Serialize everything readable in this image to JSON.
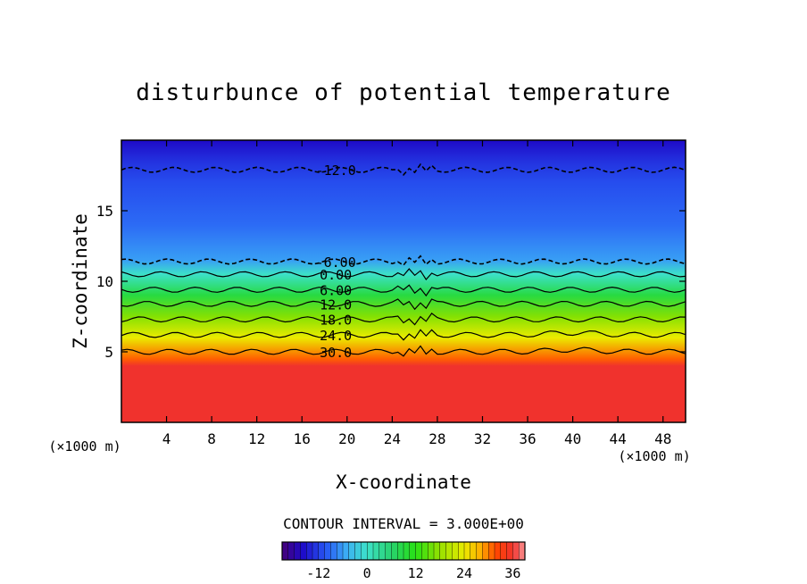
{
  "chart_data": {
    "type": "contour",
    "title": "disturbunce of potential temperature",
    "xlabel": "X-coordinate",
    "ylabel": "Z-coordinate",
    "x_unit": "(×1000 m)",
    "z_unit": "(×1000 m)",
    "xlim": [
      0,
      50
    ],
    "ylim": [
      0,
      20
    ],
    "x_ticks": [
      4,
      8,
      12,
      16,
      20,
      24,
      28,
      32,
      36,
      40,
      44,
      48
    ],
    "y_ticks": [
      5,
      10,
      15
    ],
    "contour_interval_text": "CONTOUR INTERVAL = 3.000E+00",
    "contour_interval": 3.0,
    "value_range": [
      -21,
      39
    ],
    "colorbar_ticks": [
      "-12",
      "0",
      "12",
      "24",
      "36"
    ],
    "contour_labels": [
      {
        "text": "-12.0",
        "value": -12,
        "x": 19,
        "z": 17.9
      },
      {
        "text": "-6.00",
        "value": -6,
        "x": 19,
        "z": 11.4
      },
      {
        "text": "0.00",
        "value": 0,
        "x": 19,
        "z": 10.5
      },
      {
        "text": "6.00",
        "value": 6,
        "x": 19,
        "z": 9.4
      },
      {
        "text": "12.0",
        "value": 12,
        "x": 19,
        "z": 8.4
      },
      {
        "text": "18.0",
        "value": 18,
        "x": 19,
        "z": 7.3
      },
      {
        "text": "24.0",
        "value": 24,
        "x": 19,
        "z": 6.2
      },
      {
        "text": "30.0",
        "value": 30,
        "x": 19,
        "z": 5.0
      }
    ],
    "field_profile": [
      {
        "z": 0.0,
        "value": 36
      },
      {
        "z": 4.0,
        "value": 36
      },
      {
        "z": 4.5,
        "value": 31
      },
      {
        "z": 6.0,
        "value": 24
      },
      {
        "z": 7.5,
        "value": 17
      },
      {
        "z": 9.0,
        "value": 9
      },
      {
        "z": 10.5,
        "value": 0
      },
      {
        "z": 11.5,
        "value": -6
      },
      {
        "z": 14.0,
        "value": -9
      },
      {
        "z": 17.0,
        "value": -11
      },
      {
        "z": 18.5,
        "value": -13
      },
      {
        "z": 20.0,
        "value": -16
      }
    ]
  }
}
